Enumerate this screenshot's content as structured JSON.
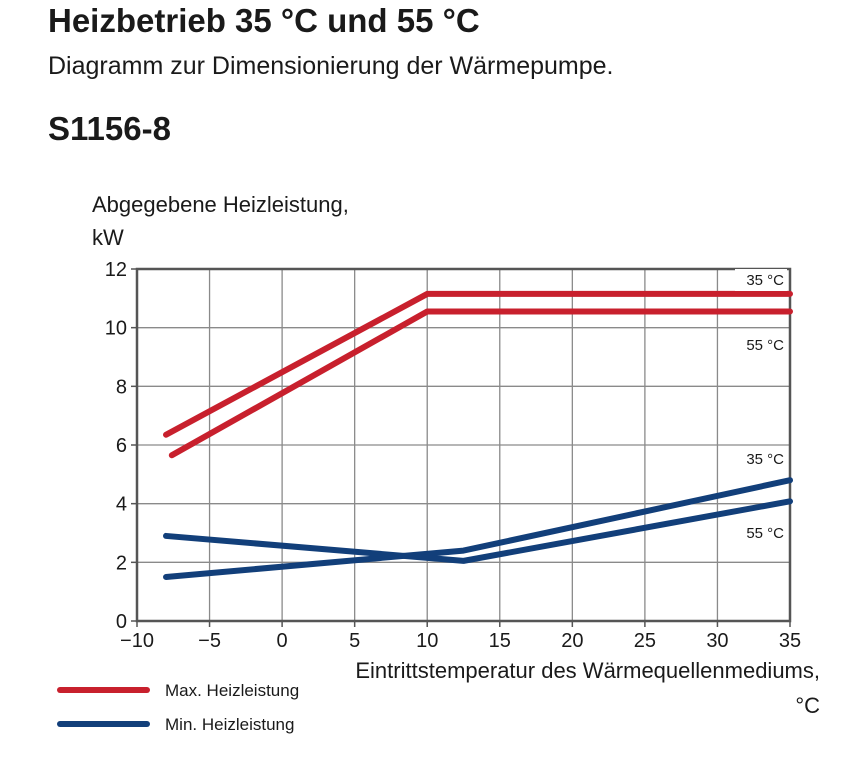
{
  "header": {
    "title": "Heizbetrieb 35 °C und 55 °C",
    "subtitle": "Diagramm zur Dimensionierung der Wärmepumpe.",
    "model": "S1156-8"
  },
  "chart_data": {
    "type": "line",
    "ylabel_line1": "Abgegebene Heizleistung,",
    "ylabel_line2": "kW",
    "xlabel_line1": "Eintrittstemperatur des Wärmequellenmediums,",
    "xlabel_line2": "°C",
    "xlim": [
      -10,
      35
    ],
    "ylim": [
      0,
      12
    ],
    "xticks": [
      -10,
      -5,
      0,
      5,
      10,
      15,
      20,
      25,
      30,
      35
    ],
    "yticks": [
      0,
      2,
      4,
      6,
      8,
      10,
      12
    ],
    "grid": true,
    "series": [
      {
        "name": "Max. Heizleistung 35 °C",
        "label": "35 °C",
        "color": "#c8202d",
        "x": [
          -8,
          10,
          35
        ],
        "y": [
          6.35,
          11.15,
          11.15
        ]
      },
      {
        "name": "Max. Heizleistung 55 °C",
        "label": "55 °C",
        "color": "#c8202d",
        "x": [
          -7.6,
          10,
          35
        ],
        "y": [
          5.65,
          10.55,
          10.55
        ]
      },
      {
        "name": "Min. Heizleistung 35 °C",
        "label": "35 °C",
        "color": "#123f7a",
        "x": [
          -8,
          12.5,
          35
        ],
        "y": [
          1.5,
          2.4,
          4.8
        ]
      },
      {
        "name": "Min. Heizleistung 55 °C",
        "label": "55 °C",
        "color": "#123f7a",
        "x": [
          -8,
          12.5,
          35
        ],
        "y": [
          2.9,
          2.05,
          4.08
        ]
      }
    ],
    "legend": [
      {
        "label": "Max. Heizleistung",
        "color": "#c8202d"
      },
      {
        "label": "Min. Heizleistung",
        "color": "#123f7a"
      }
    ],
    "legend_position": "bottom-left"
  }
}
